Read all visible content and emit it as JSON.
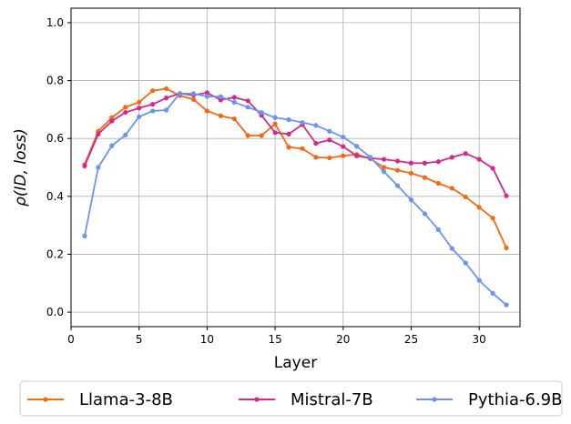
{
  "chart_data": {
    "type": "line",
    "title": "",
    "xlabel": "Layer",
    "ylabel": "ρ(ID, loss)",
    "xlim": [
      0,
      33
    ],
    "ylim": [
      -0.05,
      1.05
    ],
    "xticks": [
      0,
      5,
      10,
      15,
      20,
      25,
      30
    ],
    "yticks": [
      0.0,
      0.2,
      0.4,
      0.6,
      0.8,
      1.0
    ],
    "xtick_labels": [
      "0",
      "5",
      "10",
      "15",
      "20",
      "25",
      "30"
    ],
    "ytick_labels": [
      "0.0",
      "0.2",
      "0.4",
      "0.6",
      "0.8",
      "1.0"
    ],
    "grid": true,
    "legend_position": "bottom-outside",
    "x": [
      1,
      2,
      3,
      4,
      5,
      6,
      7,
      8,
      9,
      10,
      11,
      12,
      13,
      14,
      15,
      16,
      17,
      18,
      19,
      20,
      21,
      22,
      23,
      24,
      25,
      26,
      27,
      28,
      29,
      30,
      31,
      32
    ],
    "series": [
      {
        "name": "Llama-3-8B",
        "color": "#f5690f",
        "values": [
          0.51,
          0.625,
          0.672,
          0.708,
          0.725,
          0.765,
          0.772,
          0.748,
          0.735,
          0.695,
          0.678,
          0.668,
          0.61,
          0.61,
          0.65,
          0.57,
          0.565,
          0.535,
          0.533,
          0.54,
          0.545,
          0.53,
          0.5,
          0.49,
          0.48,
          0.465,
          0.445,
          0.428,
          0.398,
          0.362,
          0.325,
          0.222
        ]
      },
      {
        "name": "Mistral-7B",
        "color": "#d6288a",
        "values": [
          0.505,
          0.615,
          0.66,
          0.69,
          0.705,
          0.718,
          0.74,
          0.755,
          0.75,
          0.758,
          0.733,
          0.742,
          0.73,
          0.68,
          0.62,
          0.615,
          0.648,
          0.583,
          0.595,
          0.572,
          0.54,
          0.532,
          0.528,
          0.522,
          0.515,
          0.515,
          0.52,
          0.535,
          0.548,
          0.528,
          0.497,
          0.402
        ]
      },
      {
        "name": "Pythia-6.9B",
        "color": "#6b93f5",
        "values": [
          0.263,
          0.5,
          0.575,
          0.612,
          0.675,
          0.695,
          0.698,
          0.755,
          0.755,
          0.745,
          0.745,
          0.725,
          0.708,
          0.69,
          0.672,
          0.665,
          0.655,
          0.645,
          0.625,
          0.605,
          0.573,
          0.535,
          0.485,
          0.437,
          0.388,
          0.34,
          0.285,
          0.22,
          0.17,
          0.11,
          0.065,
          0.025
        ]
      }
    ]
  }
}
